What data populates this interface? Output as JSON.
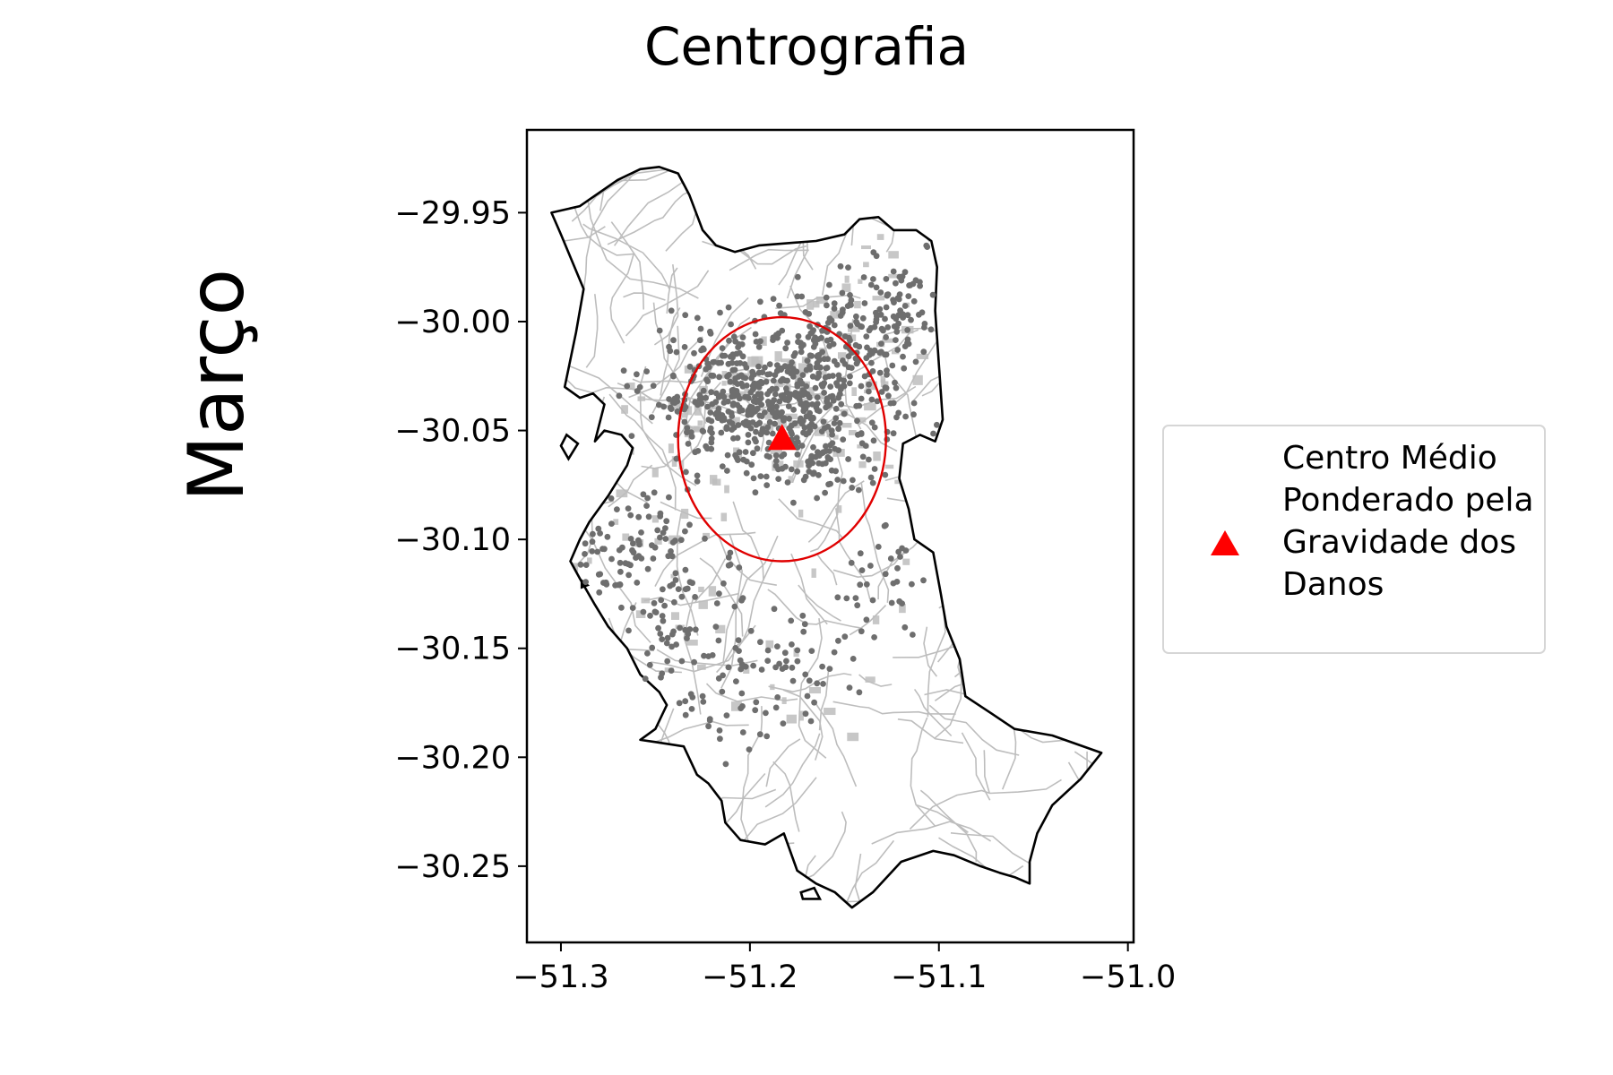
{
  "figure": {
    "title": "Centrografia",
    "row_label": "Março"
  },
  "chart_data": {
    "type": "scatter",
    "title": "Centrografia",
    "xlabel": "",
    "ylabel": "",
    "xlim": [
      -51.318,
      -50.997
    ],
    "ylim": [
      -30.285,
      -29.912
    ],
    "xticks": [
      -51.3,
      -51.2,
      -51.1,
      -51.0
    ],
    "xtick_labels": [
      "−51.3",
      "−51.2",
      "−51.1",
      "−51.0"
    ],
    "yticks": [
      -29.95,
      -30.0,
      -30.05,
      -30.1,
      -30.15,
      -30.2,
      -30.25
    ],
    "ytick_labels": [
      "−29.95",
      "−30.00",
      "−30.05",
      "−30.10",
      "−30.15",
      "−30.20",
      "−30.25"
    ],
    "grid": false,
    "legend_position": "right, outside plot",
    "legend": [
      {
        "label": "Centro Médio Ponderado pela Gravidade dos Danos",
        "marker": "triangle",
        "color": "#ff0000"
      }
    ],
    "weighted_mean_center": {
      "x": -51.183,
      "y": -30.054
    },
    "std_ellipse": {
      "center": {
        "x": -51.183,
        "y": -30.054
      },
      "x_radius": 0.055,
      "y_radius": 0.056,
      "color": "#e00000"
    },
    "boundary_color": "#000000",
    "roads_color": "#bdbdbd",
    "points_color": "#6e6e6e",
    "boundary": [
      [
        -51.305,
        -29.95
      ],
      [
        -51.29,
        -29.947
      ],
      [
        -51.27,
        -29.935
      ],
      [
        -51.258,
        -29.93
      ],
      [
        -51.248,
        -29.929
      ],
      [
        -51.238,
        -29.932
      ],
      [
        -51.232,
        -29.942
      ],
      [
        -51.225,
        -29.958
      ],
      [
        -51.218,
        -29.965
      ],
      [
        -51.208,
        -29.968
      ],
      [
        -51.195,
        -29.965
      ],
      [
        -51.18,
        -29.964
      ],
      [
        -51.165,
        -29.963
      ],
      [
        -51.15,
        -29.96
      ],
      [
        -51.142,
        -29.953
      ],
      [
        -51.132,
        -29.952
      ],
      [
        -51.124,
        -29.958
      ],
      [
        -51.112,
        -29.958
      ],
      [
        -51.104,
        -29.963
      ],
      [
        -51.101,
        -29.975
      ],
      [
        -51.102,
        -29.995
      ],
      [
        -51.1,
        -30.02
      ],
      [
        -51.098,
        -30.045
      ],
      [
        -51.102,
        -30.055
      ],
      [
        -51.11,
        -30.052
      ],
      [
        -51.119,
        -30.056
      ],
      [
        -51.121,
        -30.072
      ],
      [
        -51.116,
        -30.086
      ],
      [
        -51.113,
        -30.1
      ],
      [
        -51.103,
        -30.106
      ],
      [
        -51.099,
        -30.125
      ],
      [
        -51.096,
        -30.14
      ],
      [
        -51.089,
        -30.155
      ],
      [
        -51.086,
        -30.172
      ],
      [
        -51.072,
        -30.18
      ],
      [
        -51.06,
        -30.187
      ],
      [
        -51.04,
        -30.19
      ],
      [
        -51.014,
        -30.198
      ],
      [
        -51.025,
        -30.21
      ],
      [
        -51.04,
        -30.222
      ],
      [
        -51.048,
        -30.235
      ],
      [
        -51.052,
        -30.248
      ],
      [
        -51.052,
        -30.258
      ],
      [
        -51.06,
        -30.255
      ],
      [
        -51.068,
        -30.253
      ],
      [
        -51.078,
        -30.25
      ],
      [
        -51.092,
        -30.245
      ],
      [
        -51.103,
        -30.243
      ],
      [
        -51.12,
        -30.248
      ],
      [
        -51.135,
        -30.262
      ],
      [
        -51.146,
        -30.269
      ],
      [
        -51.155,
        -30.262
      ],
      [
        -51.165,
        -30.258
      ],
      [
        -51.175,
        -30.252
      ],
      [
        -51.182,
        -30.235
      ],
      [
        -51.192,
        -30.24
      ],
      [
        -51.205,
        -30.238
      ],
      [
        -51.213,
        -30.23
      ],
      [
        -51.215,
        -30.22
      ],
      [
        -51.222,
        -30.212
      ],
      [
        -51.228,
        -30.208
      ],
      [
        -51.235,
        -30.195
      ],
      [
        -51.25,
        -30.193
      ],
      [
        -51.258,
        -30.192
      ],
      [
        -51.25,
        -30.187
      ],
      [
        -51.244,
        -30.176
      ],
      [
        -51.248,
        -30.17
      ],
      [
        -51.258,
        -30.162
      ],
      [
        -51.265,
        -30.15
      ],
      [
        -51.275,
        -30.14
      ],
      [
        -51.282,
        -30.13
      ],
      [
        -51.29,
        -30.118
      ],
      [
        -51.295,
        -30.11
      ],
      [
        -51.29,
        -30.1
      ],
      [
        -51.285,
        -30.092
      ],
      [
        -51.275,
        -30.08
      ],
      [
        -51.265,
        -30.066
      ],
      [
        -51.262,
        -30.058
      ],
      [
        -51.268,
        -30.052
      ],
      [
        -51.277,
        -30.05
      ],
      [
        -51.282,
        -30.055
      ],
      [
        -51.277,
        -30.038
      ],
      [
        -51.283,
        -30.033
      ],
      [
        -51.29,
        -30.035
      ],
      [
        -51.298,
        -30.03
      ],
      [
        -51.292,
        -30.005
      ],
      [
        -51.288,
        -29.985
      ],
      [
        -51.3,
        -29.96
      ],
      [
        -51.305,
        -29.95
      ]
    ],
    "islands": [
      [
        [
          -51.297,
          -30.052
        ],
        [
          -51.291,
          -30.056
        ],
        [
          -51.296,
          -30.063
        ],
        [
          -51.3,
          -30.057
        ],
        [
          -51.297,
          -30.052
        ]
      ],
      [
        [
          -51.289,
          -30.119
        ],
        [
          -51.286,
          -30.121
        ],
        [
          -51.289,
          -30.122
        ],
        [
          -51.289,
          -30.119
        ]
      ],
      [
        [
          -51.173,
          -30.262
        ],
        [
          -51.166,
          -30.26
        ],
        [
          -51.163,
          -30.265
        ],
        [
          -51.172,
          -30.265
        ],
        [
          -51.173,
          -30.262
        ]
      ]
    ],
    "point_clusters": [
      {
        "center": [
          -51.2,
          -30.035
        ],
        "spread": [
          0.028,
          0.014
        ],
        "count": 420
      },
      {
        "center": [
          -51.15,
          -30.015
        ],
        "spread": [
          0.025,
          0.018
        ],
        "count": 180
      },
      {
        "center": [
          -51.125,
          -29.99
        ],
        "spread": [
          0.014,
          0.014
        ],
        "count": 70
      },
      {
        "center": [
          -51.168,
          -30.06
        ],
        "spread": [
          0.022,
          0.01
        ],
        "count": 110
      },
      {
        "center": [
          -51.265,
          -30.105
        ],
        "spread": [
          0.02,
          0.015
        ],
        "count": 90
      },
      {
        "center": [
          -51.235,
          -30.145
        ],
        "spread": [
          0.018,
          0.018
        ],
        "count": 70
      },
      {
        "center": [
          -51.18,
          -30.16
        ],
        "spread": [
          0.025,
          0.01
        ],
        "count": 45
      },
      {
        "center": [
          -51.13,
          -30.12
        ],
        "spread": [
          0.014,
          0.025
        ],
        "count": 40
      },
      {
        "center": [
          -51.21,
          -30.185
        ],
        "spread": [
          0.02,
          0.008
        ],
        "count": 20
      }
    ]
  }
}
